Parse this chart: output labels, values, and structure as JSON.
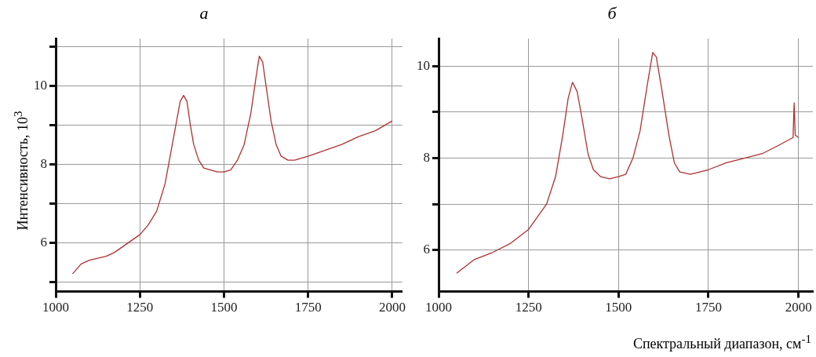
{
  "chart_data": [
    {
      "type": "line",
      "title": "а",
      "ylabel": "Интенсивность, 10$^{3}$",
      "xlim": [
        1000,
        2030
      ],
      "ylim": [
        4.75,
        11.2
      ],
      "xticks": [
        1000,
        1250,
        1500,
        1750,
        2000
      ],
      "yticks": [
        {
          "value": 5,
          "label": null
        },
        6,
        {
          "value": 7,
          "label": null
        },
        8,
        {
          "value": 9,
          "label": null
        },
        10,
        {
          "value": 11,
          "label": null
        }
      ],
      "grid": true,
      "marker": "none",
      "line_style": "solid",
      "series": [
        {
          "color": "#b03030",
          "x": [
            1050,
            1075,
            1100,
            1125,
            1150,
            1175,
            1200,
            1225,
            1250,
            1275,
            1300,
            1325,
            1340,
            1355,
            1370,
            1380,
            1390,
            1400,
            1410,
            1425,
            1440,
            1460,
            1480,
            1500,
            1520,
            1540,
            1560,
            1580,
            1595,
            1605,
            1615,
            1625,
            1640,
            1655,
            1670,
            1690,
            1710,
            1750,
            1800,
            1850,
            1900,
            1950,
            1980,
            2000
          ],
          "values": [
            5.2,
            5.45,
            5.55,
            5.6,
            5.65,
            5.75,
            5.9,
            6.05,
            6.2,
            6.45,
            6.8,
            7.5,
            8.2,
            8.9,
            9.6,
            9.75,
            9.6,
            9.0,
            8.5,
            8.1,
            7.9,
            7.85,
            7.8,
            7.8,
            7.85,
            8.1,
            8.5,
            9.3,
            10.2,
            10.75,
            10.6,
            10.0,
            9.1,
            8.5,
            8.2,
            8.1,
            8.1,
            8.2,
            8.35,
            8.5,
            8.7,
            8.85,
            9.0,
            9.1
          ]
        }
      ]
    },
    {
      "type": "line",
      "title": "б",
      "xlabel": "Спектральный диапазон, см$^{-1}$",
      "xlim": [
        1000,
        2040
      ],
      "ylim": [
        5.1,
        10.6
      ],
      "xticks": [
        1000,
        1250,
        1500,
        1750,
        2000
      ],
      "yticks": [
        6,
        {
          "value": 7,
          "label": null
        },
        8,
        {
          "value": 9,
          "label": null
        },
        10
      ],
      "grid": true,
      "marker": "none",
      "line_style": "solid",
      "series": [
        {
          "color": "#b03030",
          "x": [
            1050,
            1100,
            1150,
            1200,
            1250,
            1300,
            1325,
            1345,
            1360,
            1372,
            1385,
            1400,
            1415,
            1430,
            1450,
            1475,
            1500,
            1520,
            1540,
            1560,
            1580,
            1595,
            1605,
            1620,
            1640,
            1655,
            1670,
            1700,
            1750,
            1800,
            1850,
            1900,
            1950,
            1985,
            1988,
            1991,
            2000
          ],
          "values": [
            5.5,
            5.8,
            5.95,
            6.15,
            6.45,
            7.0,
            7.6,
            8.5,
            9.3,
            9.65,
            9.45,
            8.8,
            8.1,
            7.75,
            7.6,
            7.55,
            7.6,
            7.65,
            8.0,
            8.6,
            9.6,
            10.3,
            10.2,
            9.5,
            8.5,
            7.9,
            7.7,
            7.65,
            7.75,
            7.9,
            8.0,
            8.1,
            8.3,
            8.45,
            9.2,
            8.5,
            8.45
          ]
        }
      ]
    }
  ]
}
